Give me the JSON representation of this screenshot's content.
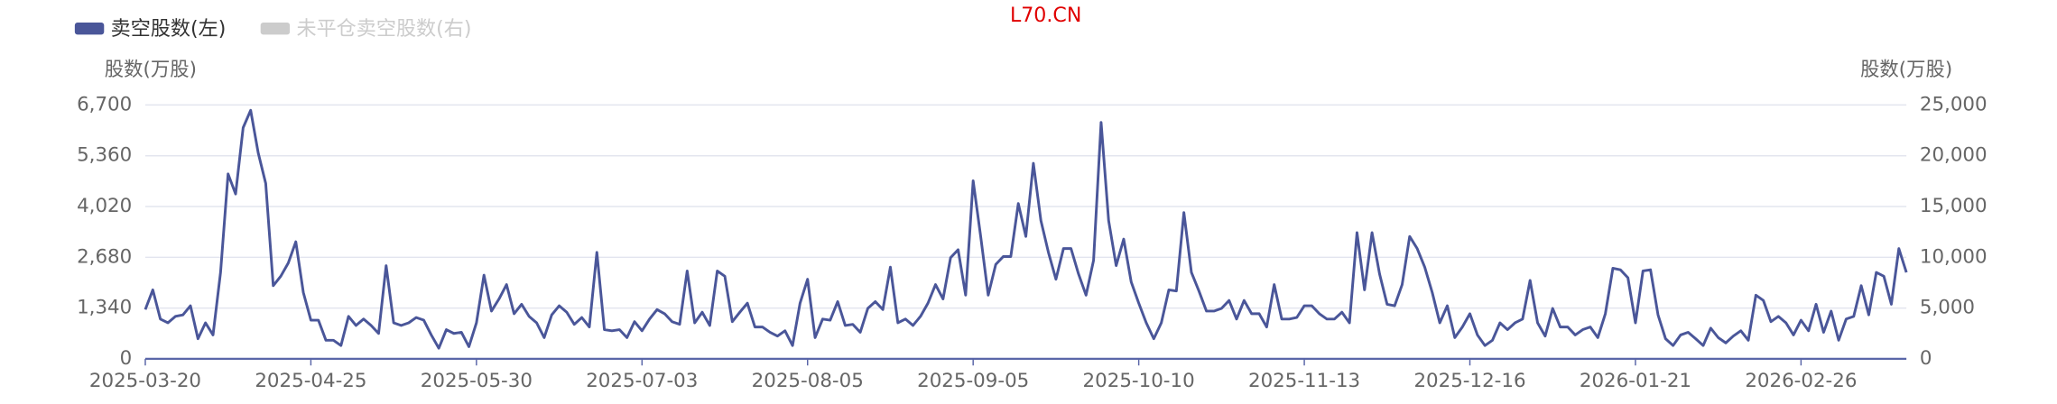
{
  "chart_data": {
    "type": "line",
    "title": "L70.CN",
    "y_label": "股数(万股)",
    "y2_label": "股数(万股)",
    "categories": [
      "2025-03-20",
      null,
      null,
      null,
      null,
      null,
      null,
      null,
      null,
      null,
      null,
      null,
      null,
      null,
      null,
      null,
      null,
      null,
      null,
      null,
      null,
      null,
      "2025-04-25",
      null,
      null,
      null,
      null,
      null,
      null,
      null,
      null,
      null,
      null,
      null,
      null,
      null,
      null,
      null,
      null,
      null,
      null,
      null,
      null,
      null,
      "2025-05-30",
      null,
      null,
      null,
      null,
      null,
      null,
      null,
      null,
      null,
      null,
      null,
      null,
      null,
      null,
      null,
      null,
      null,
      null,
      null,
      null,
      null,
      "2025-07-03",
      null,
      null,
      null,
      null,
      null,
      null,
      null,
      null,
      null,
      null,
      null,
      null,
      null,
      null,
      null,
      null,
      null,
      null,
      null,
      null,
      null,
      "2025-08-05",
      null,
      null,
      null,
      null,
      null,
      null,
      null,
      null,
      null,
      null,
      null,
      null,
      null,
      null,
      null,
      null,
      null,
      null,
      null,
      null,
      null,
      "2025-09-05",
      null,
      null,
      null,
      null,
      null,
      null,
      null,
      null,
      null,
      null,
      null,
      null,
      null,
      null,
      null,
      null,
      null,
      null,
      null,
      null,
      null,
      "2025-10-10",
      null,
      null,
      null,
      null,
      null,
      null,
      null,
      null,
      null,
      null,
      null,
      null,
      null,
      null,
      null,
      null,
      null,
      null,
      null,
      null,
      null,
      "2025-11-13",
      null,
      null,
      null,
      null,
      null,
      null,
      null,
      null,
      null,
      null,
      null,
      null,
      null,
      null,
      null,
      null,
      null,
      null,
      null,
      null,
      null,
      "2025-12-16",
      null,
      null,
      null,
      null,
      null,
      null,
      null,
      null,
      null,
      null,
      null,
      null,
      null,
      null,
      null,
      null,
      null,
      null,
      null,
      null,
      null,
      "2026-01-21",
      null,
      null,
      null,
      null,
      null,
      null,
      null,
      null,
      null,
      null,
      null,
      null,
      null,
      null,
      null,
      null,
      null,
      null,
      null,
      null,
      null,
      "2026-02-26",
      null,
      null,
      null,
      null,
      null,
      null,
      null,
      null,
      null,
      null,
      null,
      null,
      null,
      null
    ],
    "series": [
      {
        "name": "卖空股数(左)",
        "color": "#4a5699",
        "values": [
          1300,
          1820,
          1050,
          950,
          1120,
          1160,
          1400,
          530,
          950,
          630,
          2280,
          4880,
          4350,
          6100,
          6560,
          5440,
          4630,
          1930,
          2180,
          2530,
          3090,
          1750,
          1020,
          1020,
          490,
          490,
          350,
          1120,
          880,
          1050,
          880,
          670,
          2460,
          950,
          880,
          950,
          1090,
          1020,
          630,
          280,
          770,
          670,
          700,
          320,
          950,
          2210,
          1260,
          1580,
          1960,
          1190,
          1440,
          1120,
          950,
          560,
          1160,
          1400,
          1230,
          910,
          1090,
          840,
          2810,
          770,
          740,
          770,
          560,
          980,
          740,
          1050,
          1300,
          1190,
          980,
          910,
          2320,
          950,
          1230,
          880,
          2320,
          2180,
          980,
          1230,
          1470,
          840,
          840,
          700,
          600,
          740,
          350,
          1470,
          2100,
          560,
          1050,
          1020,
          1510,
          880,
          910,
          700,
          1330,
          1510,
          1300,
          2420,
          950,
          1050,
          880,
          1120,
          1470,
          1960,
          1580,
          2670,
          2880,
          1680,
          4700,
          3230,
          1680,
          2490,
          2700,
          2700,
          4100,
          3230,
          5160,
          3650,
          2810,
          2100,
          2910,
          2910,
          2240,
          1680,
          2600,
          6240,
          3650,
          2460,
          3160,
          2030,
          1470,
          950,
          530,
          950,
          1820,
          1790,
          3860,
          2280,
          1790,
          1260,
          1260,
          1330,
          1540,
          1050,
          1540,
          1190,
          1190,
          840,
          1960,
          1050,
          1050,
          1090,
          1400,
          1400,
          1190,
          1050,
          1050,
          1230,
          950,
          3330,
          1820,
          3330,
          2240,
          1440,
          1400,
          1960,
          3230,
          2910,
          2420,
          1750,
          950,
          1400,
          560,
          840,
          1190,
          630,
          350,
          490,
          950,
          770,
          950,
          1050,
          2070,
          950,
          600,
          1330,
          840,
          840,
          630,
          770,
          840,
          560,
          1190,
          2390,
          2350,
          2140,
          950,
          2320,
          2350,
          1160,
          530,
          350,
          630,
          700,
          530,
          350,
          810,
          560,
          420,
          600,
          740,
          490,
          1680,
          1540,
          980,
          1120,
          950,
          630,
          1020,
          740,
          1440,
          700,
          1260,
          490,
          1050,
          1120,
          1930,
          1160,
          2280,
          2180,
          1440,
          2910,
          2280
        ]
      },
      {
        "name": "未平仓卖空股数(右)",
        "color": "#cccccc",
        "axis": "y2",
        "visible": false
      }
    ],
    "ylim": [
      0,
      6700
    ],
    "yticks": [
      0,
      {
        "value": 1340,
        "label": "1,340"
      },
      {
        "value": 2680,
        "label": "2,680"
      },
      {
        "value": 4020,
        "label": "4,020"
      },
      {
        "value": 5360,
        "label": "5,360"
      },
      {
        "value": 6700,
        "label": "6,700"
      }
    ],
    "y2lim": [
      0,
      25000
    ],
    "y2ticks": [
      0,
      {
        "value": 5000,
        "label": "5,000"
      },
      {
        "value": 10000,
        "label": "10,000"
      },
      {
        "value": 15000,
        "label": "15,000"
      },
      {
        "value": 20000,
        "label": "20,000"
      },
      {
        "value": 25000,
        "label": "25,000"
      }
    ],
    "grid": true,
    "legend": "top-left",
    "title_color": "#e00000"
  }
}
